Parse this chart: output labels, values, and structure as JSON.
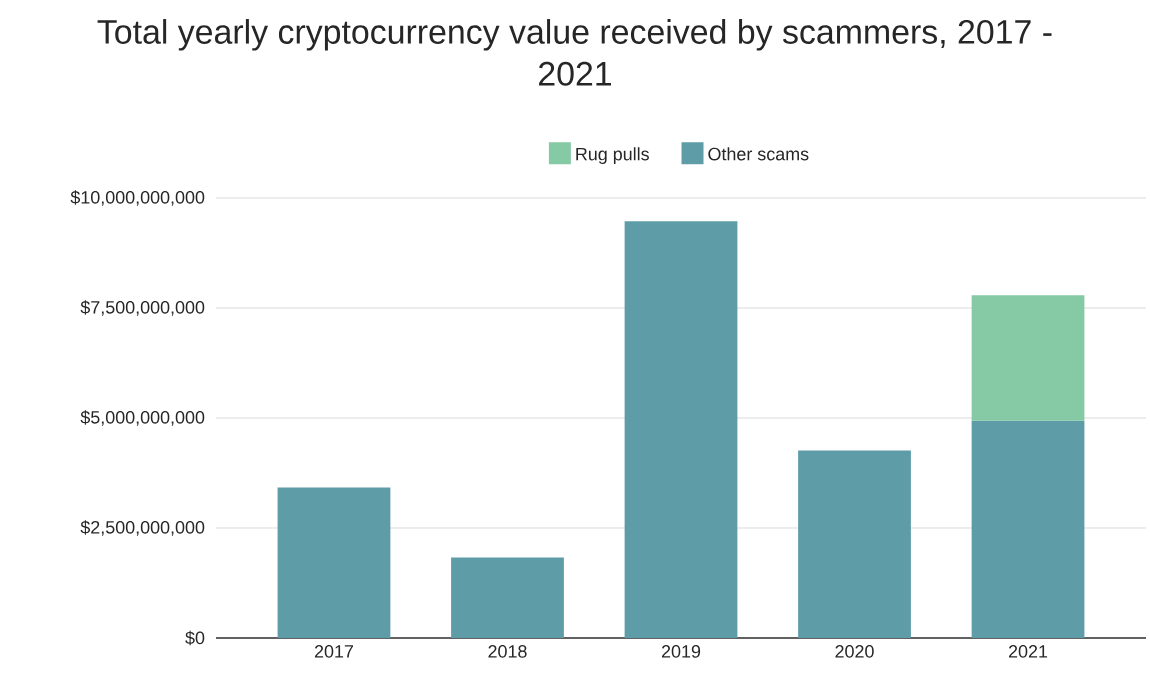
{
  "chart_data": {
    "type": "bar",
    "title": "Total yearly cryptocurrency value received by scammers, 2017 - 2021",
    "categories": [
      "2017",
      "2018",
      "2019",
      "2020",
      "2021"
    ],
    "stacked": true,
    "series": [
      {
        "name": "Other scams",
        "color": "#5e9ca8",
        "values": [
          3420000000,
          1830000000,
          9470000000,
          4260000000,
          4940000000
        ]
      },
      {
        "name": "Rug pulls",
        "color": "#86c9a5",
        "values": [
          null,
          null,
          null,
          null,
          2850000000
        ]
      }
    ],
    "ylim": [
      0,
      10000000000
    ],
    "yticks": [
      {
        "value": 0,
        "label": "$0"
      },
      {
        "value": 2500000000,
        "label": "$2,500,000,000"
      },
      {
        "value": 5000000000,
        "label": "$5,000,000,000"
      },
      {
        "value": 7500000000,
        "label": "$7,500,000,000"
      },
      {
        "value": 10000000000,
        "label": "$10,000,000,000"
      }
    ],
    "grid": "y",
    "legend": "top"
  }
}
